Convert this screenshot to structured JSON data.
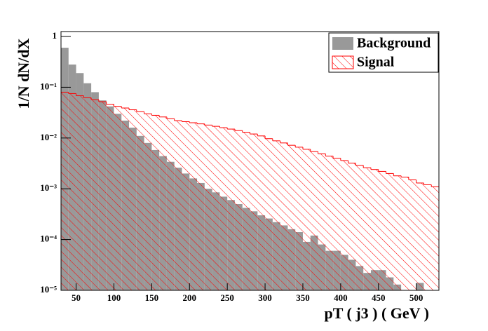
{
  "chart_data": {
    "type": "histogram",
    "log_y": true,
    "xlabel": "pT ( j3 )   ( GeV )",
    "ylabel": "1/N dN/dX",
    "bins": [
      30,
      40,
      50,
      60,
      70,
      80,
      90,
      100,
      110,
      120,
      130,
      140,
      150,
      160,
      170,
      180,
      190,
      200,
      210,
      220,
      230,
      240,
      250,
      260,
      270,
      280,
      290,
      300,
      310,
      320,
      330,
      340,
      350,
      360,
      370,
      380,
      390,
      400,
      410,
      420,
      430,
      440,
      450,
      460,
      470,
      480,
      490,
      500,
      510,
      520,
      530
    ],
    "series": [
      {
        "name": "Background",
        "color": "#999999",
        "fill": "solid",
        "values": [
          0.6,
          0.28,
          0.19,
          0.12,
          0.08,
          0.055,
          0.042,
          0.03,
          0.022,
          0.016,
          0.011,
          0.008,
          0.0058,
          0.0044,
          0.0034,
          0.0026,
          0.002,
          0.0016,
          0.0013,
          0.001,
          0.00085,
          0.0007,
          0.0006,
          0.0005,
          0.00042,
          0.00036,
          0.0003,
          0.00026,
          0.00022,
          0.00019,
          0.00016,
          0.00014,
          9e-05,
          0.00012,
          8e-05,
          6e-05,
          6e-05,
          5e-05,
          4e-05,
          3e-05,
          2.2e-05,
          2.5e-05,
          2.5e-05,
          1.8e-05,
          1.3e-05,
          null,
          9.8e-06,
          1.4e-05,
          null,
          null
        ]
      },
      {
        "name": "Signal",
        "color": "#ff0000",
        "fill": "hatch",
        "values": [
          0.08,
          0.075,
          0.068,
          0.062,
          0.057,
          0.052,
          0.046,
          0.042,
          0.039,
          0.036,
          0.033,
          0.03,
          0.028,
          0.026,
          0.024,
          0.022,
          0.021,
          0.02,
          0.019,
          0.018,
          0.017,
          0.016,
          0.015,
          0.014,
          0.013,
          0.012,
          0.011,
          0.0097,
          0.0088,
          0.008,
          0.0072,
          0.0066,
          0.006,
          0.0054,
          0.0049,
          0.0044,
          0.004,
          0.0036,
          0.0032,
          0.0029,
          0.0026,
          0.0024,
          0.0022,
          0.002,
          0.0018,
          0.0017,
          0.0015,
          0.0013,
          0.0012,
          0.0011
        ]
      }
    ],
    "xlim": [
      30,
      530
    ],
    "xticks": [
      50,
      100,
      150,
      200,
      250,
      300,
      350,
      400,
      450,
      500
    ],
    "ylim": [
      1e-05,
      1.25
    ],
    "yticks": [
      {
        "value": 1,
        "label": "1"
      },
      {
        "value": 0.1,
        "label": "10⁻¹"
      },
      {
        "value": 0.01,
        "label": "10⁻²"
      },
      {
        "value": 0.001,
        "label": "10⁻³"
      },
      {
        "value": 0.0001,
        "label": "10⁻⁴"
      },
      {
        "value": 1e-05,
        "label": "10⁻⁵"
      }
    ],
    "legend": "top-right"
  }
}
